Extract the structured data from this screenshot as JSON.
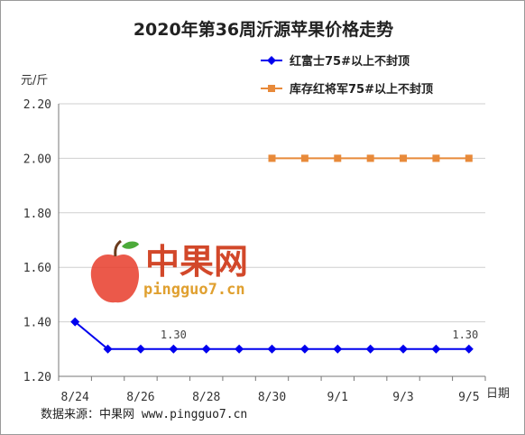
{
  "chart_data": {
    "type": "line",
    "title": "2020年第36周沂源苹果价格走势",
    "ylabel": "元/斤",
    "xlabel": "日期",
    "x": [
      "8/24",
      "8/25",
      "8/26",
      "8/27",
      "8/28",
      "8/29",
      "8/30",
      "8/31",
      "9/1",
      "9/2",
      "9/3",
      "9/4",
      "9/5"
    ],
    "x_tick_labels": [
      "8/24",
      "8/26",
      "8/28",
      "8/30",
      "9/1",
      "9/3",
      "9/5"
    ],
    "y_ticks": [
      "1.20",
      "1.40",
      "1.60",
      "1.80",
      "2.00",
      "2.20"
    ],
    "ylim": [
      1.2,
      2.2
    ],
    "grid": "horizontal",
    "legend_position": "top-right",
    "series": [
      {
        "name": "红富士75#以上不封顶",
        "color": "#0000ee",
        "marker": "diamond",
        "values": [
          1.4,
          1.3,
          1.3,
          1.3,
          1.3,
          1.3,
          1.3,
          1.3,
          1.3,
          1.3,
          1.3,
          1.3,
          1.3
        ]
      },
      {
        "name": "库存红将军75#以上不封顶",
        "color": "#e88a3a",
        "marker": "square",
        "values": [
          null,
          null,
          null,
          null,
          null,
          null,
          2.0,
          2.0,
          2.0,
          2.0,
          2.0,
          2.0,
          2.0
        ]
      }
    ],
    "annotations": [
      {
        "x": "8/27",
        "y": 1.3,
        "text": "1.30"
      },
      {
        "x": "9/5",
        "y": 1.3,
        "text": "1.30"
      }
    ]
  },
  "watermark": {
    "brand": "中果网",
    "url": "pingguo7.cn"
  },
  "source_text": "数据来源：中果网 www.pingguo7.cn"
}
